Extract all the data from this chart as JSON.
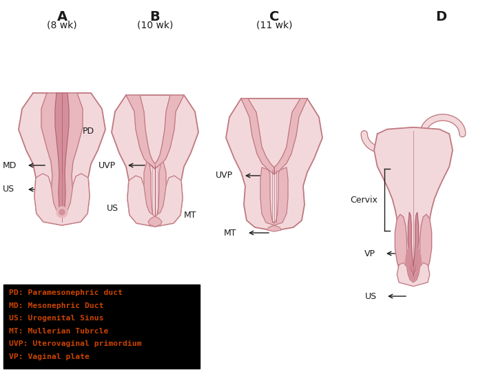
{
  "background_color": "#ffffff",
  "col_outer": "#f2d8db",
  "col_mid": "#e8b8be",
  "col_inner": "#d4909a",
  "col_line": "#c07880",
  "col_dark_line": "#b06070",
  "col_arrow": "#1a1a1a",
  "col_text": "#1a1a1a",
  "legend_lines": [
    "PD: Paramesonephric duct",
    "MD: Mesonephric Duct",
    "US: Urogenital Sinus",
    "MT: Mullerian Tubrcle",
    "UVP: Uterovaginal primordium",
    "VP: Vaginal plate"
  ],
  "legend_color": "#cc4400",
  "legend_bg": "#000000"
}
